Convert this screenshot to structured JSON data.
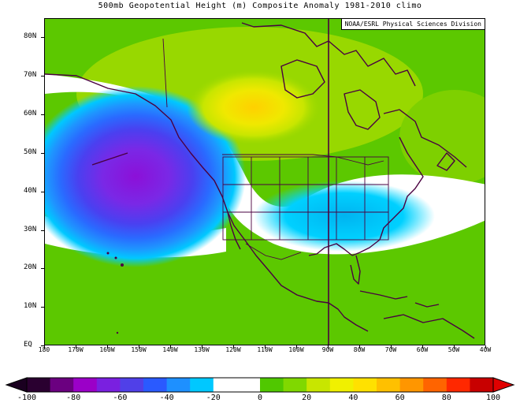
{
  "title": "500mb Geopotential Height (m) Composite Anomaly 1981-2010 climo",
  "credit": "NOAA/ESRL Physical Sciences Division",
  "lat_labels": [
    "80N",
    "70N",
    "60N",
    "50N",
    "40N",
    "30N",
    "20N",
    "10N",
    "EQ"
  ],
  "lon_labels": [
    "180",
    "170W",
    "160W",
    "150W",
    "140W",
    "130W",
    "120W",
    "110W",
    "100W",
    "90W",
    "80W",
    "70W",
    "60W",
    "50W",
    "40W"
  ],
  "colorbar": {
    "labels": [
      "-100",
      "-80",
      "-60",
      "-40",
      "-20",
      "0",
      "20",
      "40",
      "60",
      "80",
      "100"
    ],
    "colors": [
      "#2a0030",
      "#6b0080",
      "#9b00c8",
      "#7a20e0",
      "#5040e8",
      "#2a5aff",
      "#1e90ff",
      "#00c8ff",
      "#ffffff",
      "#ffffff",
      "#50c800",
      "#80d800",
      "#c8e600",
      "#f0f000",
      "#ffe100",
      "#ffc000",
      "#ff9600",
      "#ff6400",
      "#ff2800",
      "#c80000"
    ]
  },
  "map_data": {
    "lon_range": [
      -180,
      -40
    ],
    "lat_range": [
      0,
      85
    ],
    "anomalies": [
      {
        "name": "low-north-pacific",
        "lon": -163,
        "lat": 43,
        "value": -70
      },
      {
        "name": "low-eastern-us",
        "lon": -82,
        "lat": 36,
        "value": -25
      },
      {
        "name": "high-northern-canada",
        "lon": -120,
        "lat": 65,
        "value": 45
      }
    ]
  }
}
